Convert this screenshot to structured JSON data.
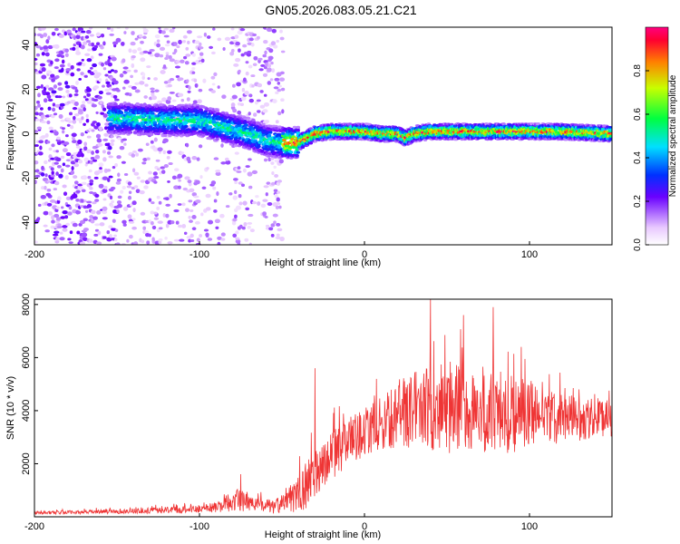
{
  "title": "GN05.2026.083.05.21.C21",
  "colors": {
    "signal": "#ef3535",
    "axis": "#000000"
  },
  "chart_data": [
    {
      "type": "heatmap",
      "title": "GN05.2026.083.05.21.C21",
      "xlabel": "Height of straight line (km)",
      "ylabel": "Frequency (Hz)",
      "xlim": [
        -200,
        150
      ],
      "ylim": [
        -50,
        48
      ],
      "xticks": [
        "-200",
        "-100",
        "0",
        "100"
      ],
      "yticks": [
        "-40",
        "-20",
        "0",
        "20",
        "40"
      ],
      "ridge": {
        "description_points_x": [
          -150,
          -120,
          -100,
          -90,
          -80,
          -70,
          -60,
          -50,
          -40,
          -35,
          -30,
          -20,
          -10,
          0,
          10,
          20,
          25,
          30,
          40,
          60,
          80,
          100,
          120,
          150
        ],
        "frequency_hz": [
          7,
          6,
          6,
          4,
          2,
          0,
          -3,
          -4,
          -4,
          -2,
          0,
          1,
          1,
          1,
          0,
          0,
          -2,
          0,
          1,
          1,
          1,
          1,
          1,
          0
        ]
      },
      "colorbar": {
        "label": "Normalized spectral amplitude",
        "range": [
          0,
          1
        ],
        "ticks": [
          "0.0",
          "0.2",
          "0.4",
          "0.6",
          "0.8"
        ]
      }
    },
    {
      "type": "line",
      "xlabel": "Height of straight line (km)",
      "ylabel": "SNR (10 * v/v)",
      "xlim": [
        -200,
        150
      ],
      "ylim": [
        0,
        8200
      ],
      "xticks": [
        "-200",
        "-100",
        "0",
        "100"
      ],
      "yticks": [
        "2000",
        "4000",
        "6000",
        "8000"
      ],
      "series": [
        {
          "name": "SNR",
          "envelope_x": [
            -200,
            -150,
            -120,
            -100,
            -90,
            -80,
            -75,
            -70,
            -60,
            -50,
            -40,
            -35,
            -30,
            -20,
            -10,
            0,
            10,
            20,
            30,
            40,
            60,
            80,
            100,
            120,
            150
          ],
          "mean": [
            150,
            200,
            250,
            300,
            350,
            500,
            700,
            500,
            400,
            400,
            900,
            1200,
            1700,
            2300,
            2800,
            3200,
            3500,
            3800,
            4000,
            4100,
            4000,
            4000,
            3800,
            3700,
            3700
          ],
          "spread": [
            60,
            80,
            120,
            150,
            200,
            300,
            500,
            300,
            250,
            350,
            700,
            900,
            900,
            900,
            900,
            900,
            1000,
            1200,
            1400,
            1700,
            1700,
            1700,
            1300,
            900,
            700
          ],
          "peaks": [
            {
              "x": -30,
              "y": 5600
            },
            {
              "x": 40,
              "y": 8200
            },
            {
              "x": 60,
              "y": 7600
            },
            {
              "x": 78,
              "y": 7900
            },
            {
              "x": 95,
              "y": 6400
            },
            {
              "x": 130,
              "y": 4800
            }
          ]
        }
      ]
    }
  ]
}
